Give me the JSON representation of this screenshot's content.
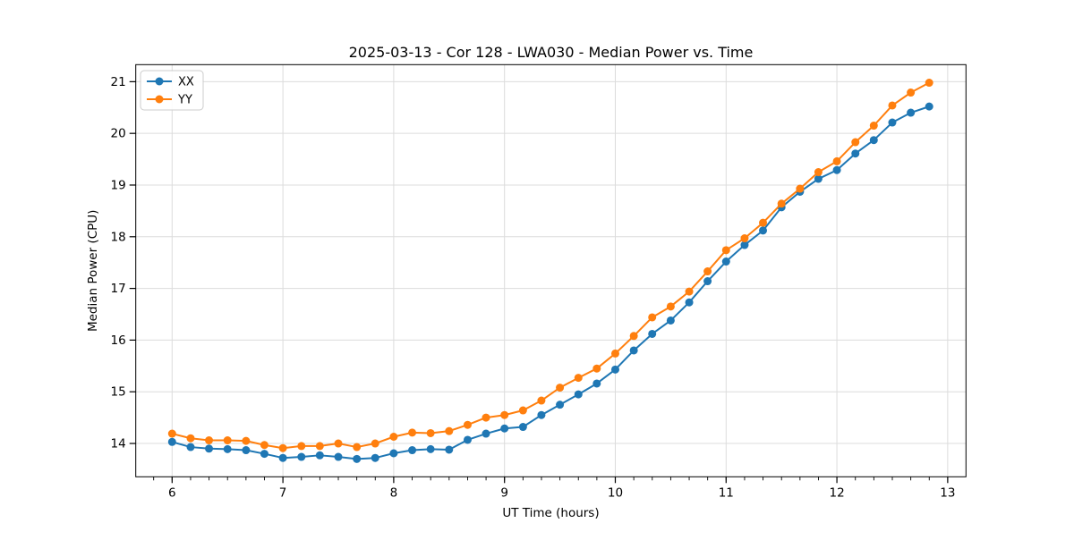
{
  "figure": {
    "title": "2025-03-13 - Cor 128 - LWA030 - Median Power vs. Time"
  },
  "chart_data": {
    "type": "line",
    "title": "2025-03-13 - Cor 128 - LWA030 - Median Power vs. Time",
    "xlabel": "UT Time (hours)",
    "ylabel": "Median Power (CPU)",
    "xlim": [
      5.672,
      13.165
    ],
    "ylim": [
      13.355,
      21.33
    ],
    "xticks": [
      6,
      7,
      8,
      9,
      10,
      11,
      12,
      13
    ],
    "yticks": [
      14,
      15,
      16,
      17,
      18,
      19,
      20,
      21
    ],
    "x_minor_step": 0.16667,
    "grid": true,
    "legend_position": "upper-left",
    "colors": {
      "XX": "#1f77b4",
      "YY": "#ff7f0e"
    },
    "grid_color": "#dcdcdc",
    "x": [
      6.0,
      6.167,
      6.333,
      6.5,
      6.667,
      6.833,
      7.0,
      7.167,
      7.333,
      7.5,
      7.667,
      7.833,
      8.0,
      8.167,
      8.333,
      8.5,
      8.667,
      8.833,
      9.0,
      9.167,
      9.333,
      9.5,
      9.667,
      9.833,
      10.0,
      10.167,
      10.333,
      10.5,
      10.667,
      10.833,
      11.0,
      11.167,
      11.333,
      11.5,
      11.667,
      11.833,
      12.0,
      12.167,
      12.333,
      12.5,
      12.667,
      12.833
    ],
    "series": [
      {
        "name": "XX",
        "color": "#1f77b4",
        "values": [
          14.03,
          13.93,
          13.9,
          13.89,
          13.87,
          13.8,
          13.72,
          13.74,
          13.77,
          13.74,
          13.7,
          13.72,
          13.81,
          13.87,
          13.89,
          13.88,
          14.07,
          14.19,
          14.29,
          14.32,
          14.55,
          14.75,
          14.95,
          15.16,
          15.43,
          15.8,
          16.12,
          16.38,
          16.73,
          17.14,
          17.52,
          17.84,
          18.12,
          18.57,
          18.87,
          19.12,
          19.29,
          19.61,
          19.87,
          20.21,
          20.4,
          20.52
        ]
      },
      {
        "name": "YY",
        "color": "#ff7f0e",
        "values": [
          14.19,
          14.1,
          14.06,
          14.06,
          14.05,
          13.97,
          13.91,
          13.95,
          13.95,
          14.0,
          13.93,
          14.0,
          14.13,
          14.21,
          14.2,
          14.24,
          14.36,
          14.5,
          14.55,
          14.64,
          14.83,
          15.08,
          15.27,
          15.45,
          15.74,
          16.08,
          16.44,
          16.65,
          16.94,
          17.33,
          17.74,
          17.97,
          18.27,
          18.64,
          18.93,
          19.25,
          19.46,
          19.83,
          20.15,
          20.54,
          20.79,
          20.98
        ]
      }
    ]
  }
}
